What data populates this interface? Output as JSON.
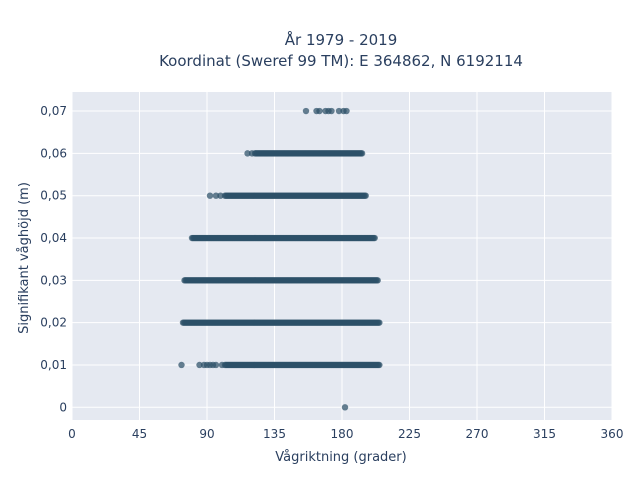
{
  "chart_data": {
    "type": "scatter",
    "title_line1": "År 1979 - 2019",
    "title_line2": "Koordinat (Sweref 99 TM): E 364862, N 6192114",
    "xlabel": "Vågriktning (grader)",
    "ylabel": "Signifikant våghöjd (m)",
    "xlim": [
      0,
      360
    ],
    "ylim": [
      -0.003,
      0.0745
    ],
    "x_ticks": [
      0,
      45,
      90,
      135,
      180,
      225,
      270,
      315,
      360
    ],
    "x_tick_labels": [
      "0",
      "45",
      "90",
      "135",
      "180",
      "225",
      "270",
      "315",
      "360"
    ],
    "y_ticks": [
      0,
      0.01,
      0.02,
      0.03,
      0.04,
      0.05,
      0.06,
      0.07
    ],
    "y_tick_labels": [
      "0",
      "0,01",
      "0,02",
      "0,03",
      "0,04",
      "0,05",
      "0,06",
      "0,07"
    ],
    "grid": true,
    "legend": "none",
    "marker_color": "#2c5068",
    "background_color": "#e5e9f1",
    "series": [
      {
        "y": 0.07,
        "isolated_x": [
          156,
          163,
          165,
          169,
          171,
          173,
          178,
          181,
          183
        ]
      },
      {
        "y": 0.06,
        "isolated_x": [
          117,
          120
        ],
        "dense_range": [
          122,
          194
        ]
      },
      {
        "y": 0.05,
        "isolated_x": [
          92,
          96,
          99
        ],
        "dense_range": [
          102,
          196
        ]
      },
      {
        "y": 0.04,
        "dense_range": [
          80,
          202
        ]
      },
      {
        "y": 0.03,
        "dense_range": [
          75,
          204
        ]
      },
      {
        "y": 0.02,
        "dense_range": [
          74,
          205
        ]
      },
      {
        "y": 0.01,
        "isolated_x": [
          73,
          85,
          88,
          90,
          92,
          94,
          96,
          100
        ],
        "dense_range": [
          102,
          205
        ]
      },
      {
        "y": 0,
        "isolated_x": [
          182
        ]
      }
    ]
  }
}
